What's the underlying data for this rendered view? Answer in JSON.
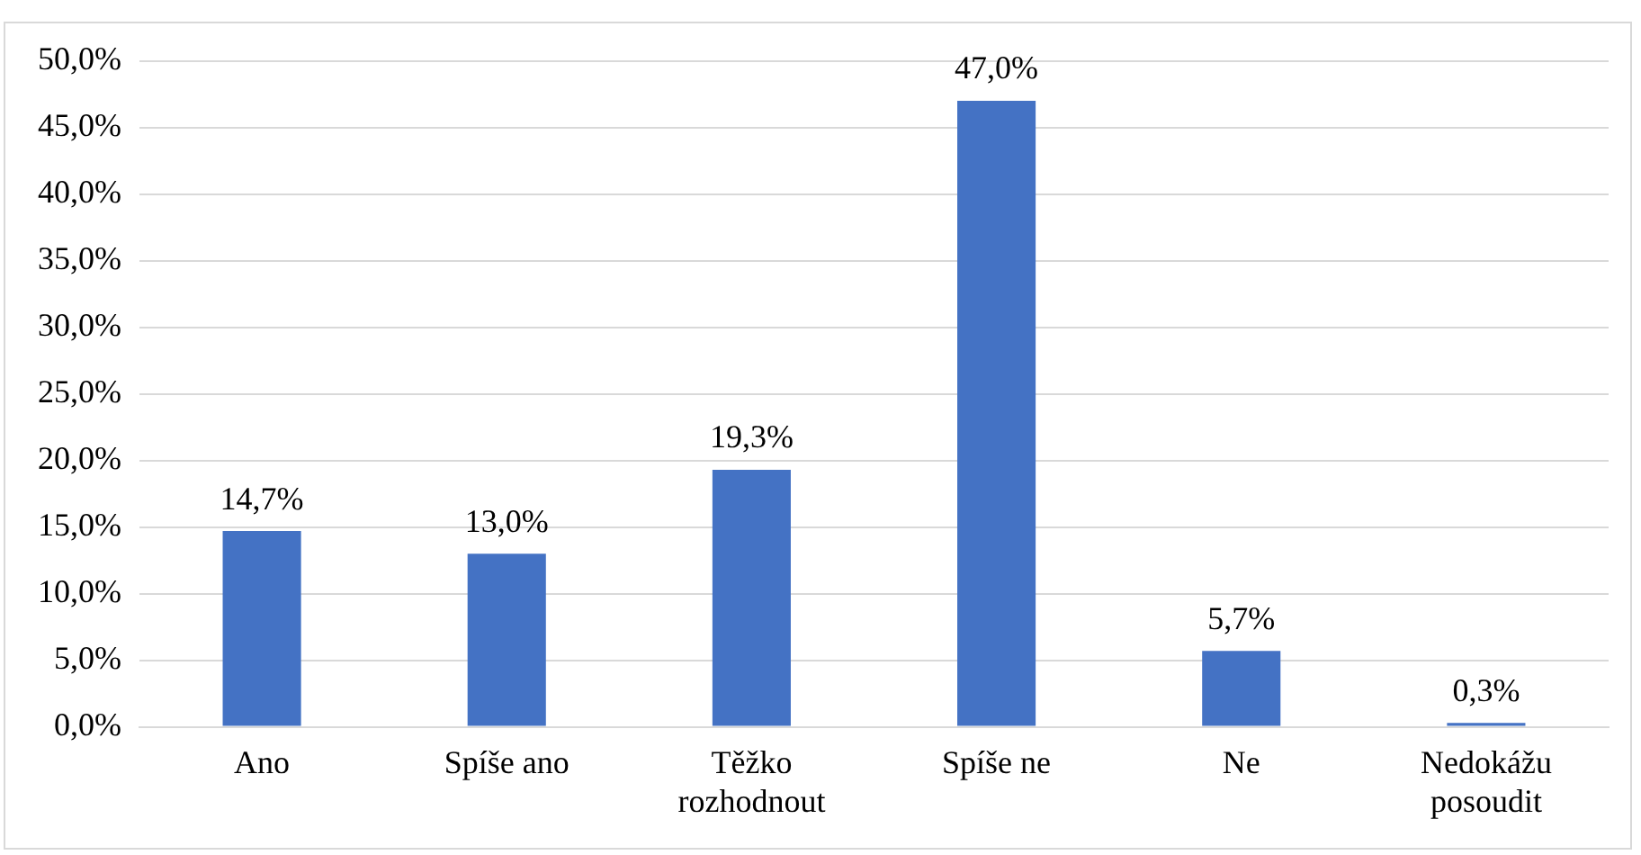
{
  "chart_data": {
    "type": "bar",
    "categories": [
      "Ano",
      "Spíše ano",
      "Těžko rozhodnout",
      "Spíše ne",
      "Ne",
      "Nedokážu posoudit"
    ],
    "values": [
      14.7,
      13.0,
      19.3,
      47.0,
      5.7,
      0.3
    ],
    "value_labels": [
      "14,7%",
      "13,0%",
      "19,3%",
      "47,0%",
      "5,7%",
      "0,3%"
    ],
    "color": "#4472c4",
    "ylim": [
      0,
      50
    ],
    "yticks": [
      {
        "value": 0,
        "label": "0,0%"
      },
      {
        "value": 5,
        "label": "5,0%"
      },
      {
        "value": 10,
        "label": "10,0%"
      },
      {
        "value": 15,
        "label": "15,0%"
      },
      {
        "value": 20,
        "label": "20,0%"
      },
      {
        "value": 25,
        "label": "25,0%"
      },
      {
        "value": 30,
        "label": "30,0%"
      },
      {
        "value": 35,
        "label": "35,0%"
      },
      {
        "value": 40,
        "label": "40,0%"
      },
      {
        "value": 45,
        "label": "45,0%"
      },
      {
        "value": 50,
        "label": "50,0%"
      }
    ],
    "grid": "y",
    "legend": false
  }
}
